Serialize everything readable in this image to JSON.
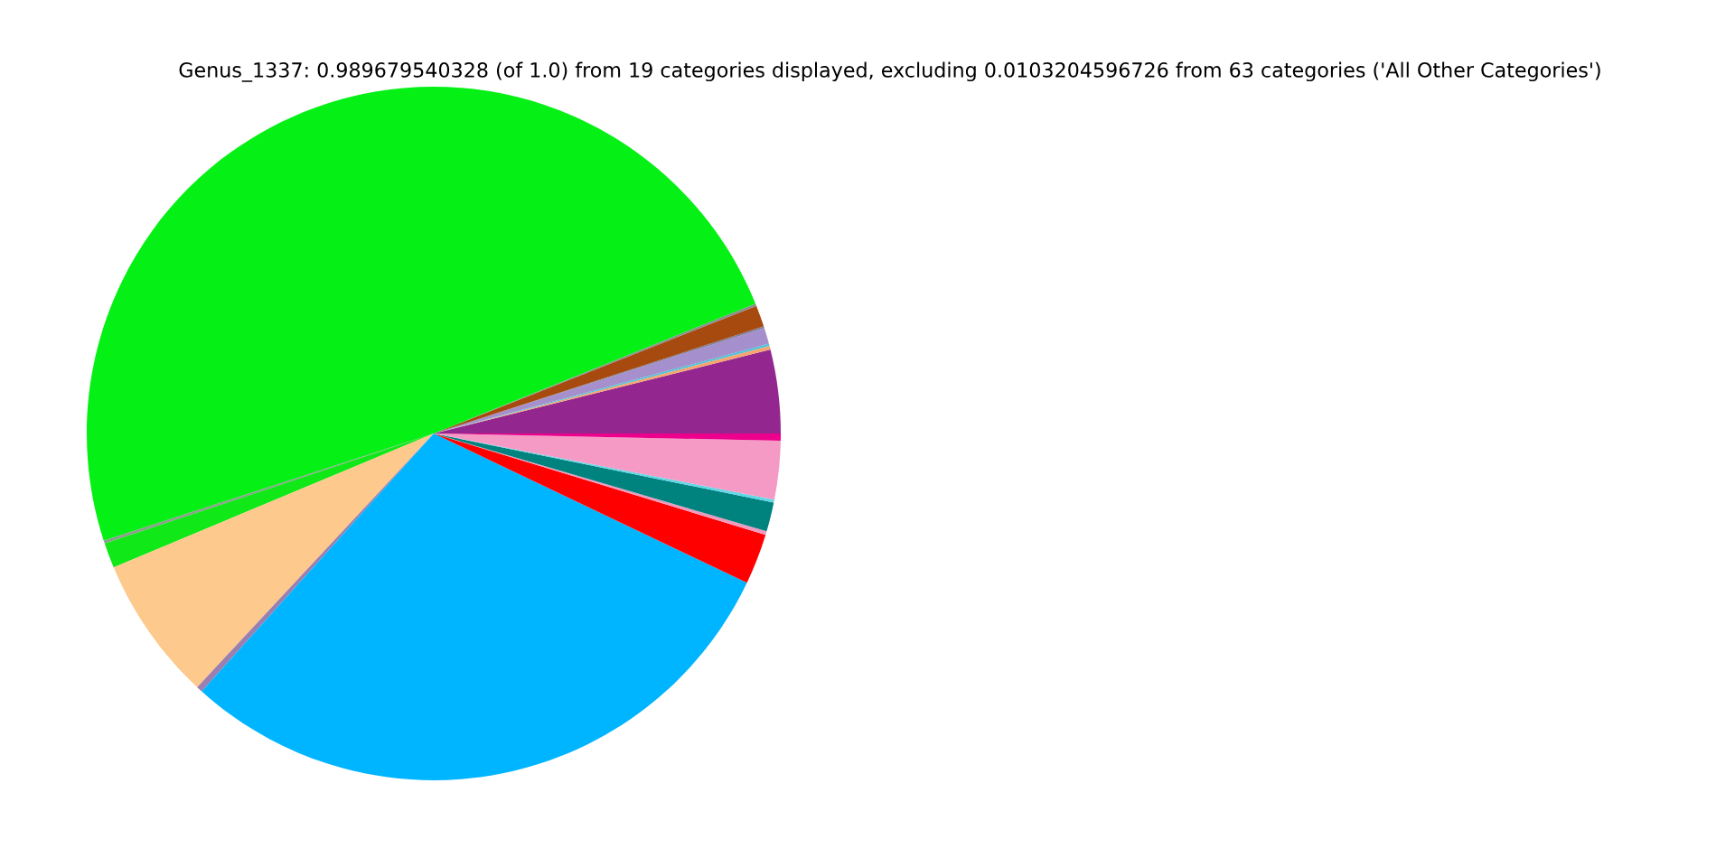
{
  "chart_data": {
    "type": "pie",
    "title": "Genus_1337: 0.989679540328 (of 1.0) from 19 categories displayed, excluding 0.0103204596726 from 63 categories ('All Other Categories')",
    "categories": [
      null,
      null,
      null,
      null,
      null,
      null,
      null,
      null,
      null,
      null,
      null,
      null,
      null,
      null,
      null,
      null,
      null,
      null,
      null
    ],
    "values": [
      3.89,
      0.17,
      0.11,
      0.75,
      0.08,
      1.0,
      0.11,
      48.89,
      0.14,
      1.17,
      6.75,
      0.28,
      29.58,
      2.36,
      0.17,
      1.36,
      0.14,
      2.72,
      0.33
    ],
    "colors": [
      "#93278f",
      "#f7a46f",
      "#4fc3d9",
      "#a58fcc",
      "#7f7f9f",
      "#a64a0f",
      "#8c8c8c",
      "#05f015",
      "#8c9c8c",
      "#10e818",
      "#fdc98c",
      "#9a7fb0",
      "#00b5ff",
      "#ff0000",
      "#f09ac0",
      "#00827f",
      "#5fd8e8",
      "#f49ac4",
      "#ec008c"
    ]
  }
}
